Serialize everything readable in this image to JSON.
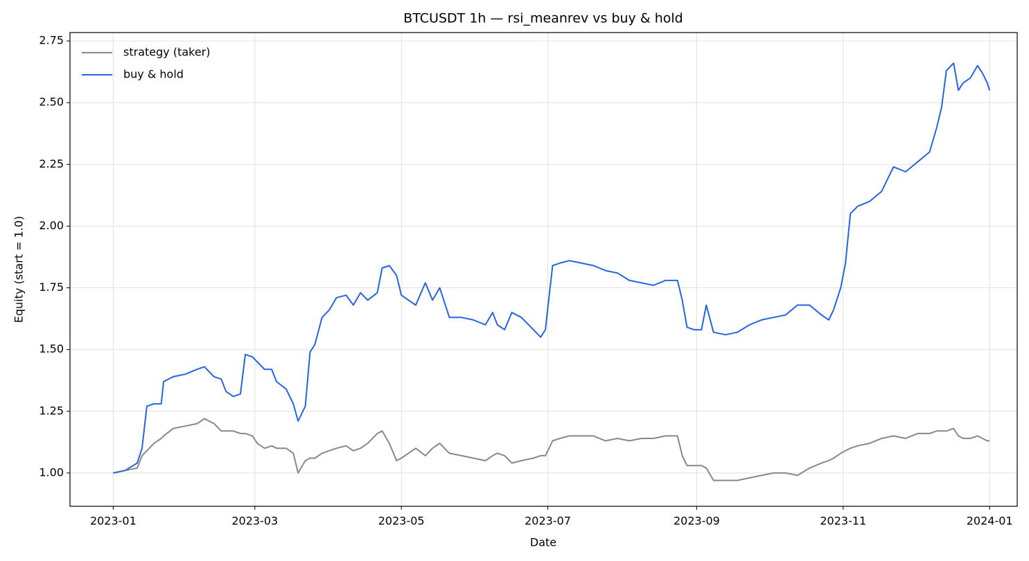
{
  "chart_data": {
    "type": "line",
    "title": "BTCUSDT 1h — rsi_meanrev vs buy & hold",
    "x_label": "Date",
    "y_label": "Equity (start = 1.0)",
    "x": [
      0,
      5,
      10,
      12,
      14,
      17,
      20,
      21,
      25,
      30,
      35,
      38,
      42,
      45,
      47,
      50,
      53,
      55,
      58,
      60,
      63,
      66,
      68,
      72,
      75,
      77,
      80,
      82,
      84,
      87,
      90,
      93,
      97,
      100,
      103,
      106,
      110,
      112,
      115,
      118,
      120,
      123,
      126,
      130,
      133,
      136,
      140,
      145,
      150,
      155,
      158,
      160,
      163,
      166,
      170,
      175,
      178,
      180,
      181,
      183,
      186,
      190,
      195,
      200,
      205,
      210,
      215,
      220,
      225,
      230,
      235,
      237,
      239,
      242,
      245,
      247,
      250,
      255,
      260,
      265,
      270,
      275,
      280,
      285,
      290,
      295,
      298,
      300,
      303,
      305,
      307,
      310,
      315,
      320,
      325,
      330,
      335,
      340,
      343,
      345,
      347,
      350,
      352,
      354,
      357,
      360,
      362,
      364,
      365
    ],
    "series": [
      {
        "name": "strategy (taker)",
        "color": "#888888",
        "values": [
          1.0,
          1.01,
          1.02,
          1.07,
          1.09,
          1.12,
          1.14,
          1.15,
          1.18,
          1.19,
          1.2,
          1.22,
          1.2,
          1.17,
          1.17,
          1.17,
          1.16,
          1.16,
          1.15,
          1.12,
          1.1,
          1.11,
          1.1,
          1.1,
          1.08,
          1.0,
          1.05,
          1.06,
          1.06,
          1.08,
          1.09,
          1.1,
          1.11,
          1.09,
          1.1,
          1.12,
          1.16,
          1.17,
          1.12,
          1.05,
          1.06,
          1.08,
          1.1,
          1.07,
          1.1,
          1.12,
          1.08,
          1.07,
          1.06,
          1.05,
          1.07,
          1.08,
          1.07,
          1.04,
          1.05,
          1.06,
          1.07,
          1.07,
          1.09,
          1.13,
          1.14,
          1.15,
          1.15,
          1.15,
          1.13,
          1.14,
          1.13,
          1.14,
          1.14,
          1.15,
          1.15,
          1.07,
          1.03,
          1.03,
          1.03,
          1.02,
          0.97,
          0.97,
          0.97,
          0.98,
          0.99,
          1.0,
          1.0,
          0.99,
          1.02,
          1.04,
          1.05,
          1.06,
          1.08,
          1.09,
          1.1,
          1.11,
          1.12,
          1.14,
          1.15,
          1.14,
          1.16,
          1.16,
          1.17,
          1.17,
          1.17,
          1.18,
          1.15,
          1.14,
          1.14,
          1.15,
          1.14,
          1.13,
          1.13
        ]
      },
      {
        "name": "buy & hold",
        "color": "#2563e0",
        "values": [
          1.0,
          1.01,
          1.04,
          1.1,
          1.27,
          1.28,
          1.28,
          1.37,
          1.39,
          1.4,
          1.42,
          1.43,
          1.39,
          1.38,
          1.33,
          1.31,
          1.32,
          1.48,
          1.47,
          1.45,
          1.42,
          1.42,
          1.37,
          1.34,
          1.28,
          1.21,
          1.27,
          1.49,
          1.52,
          1.63,
          1.66,
          1.71,
          1.72,
          1.68,
          1.73,
          1.7,
          1.73,
          1.83,
          1.84,
          1.8,
          1.72,
          1.7,
          1.68,
          1.77,
          1.7,
          1.75,
          1.63,
          1.63,
          1.62,
          1.6,
          1.65,
          1.6,
          1.58,
          1.65,
          1.63,
          1.58,
          1.55,
          1.58,
          1.67,
          1.84,
          1.85,
          1.86,
          1.85,
          1.84,
          1.82,
          1.81,
          1.78,
          1.77,
          1.76,
          1.78,
          1.78,
          1.7,
          1.59,
          1.58,
          1.58,
          1.68,
          1.57,
          1.56,
          1.57,
          1.6,
          1.62,
          1.63,
          1.64,
          1.68,
          1.68,
          1.64,
          1.62,
          1.66,
          1.75,
          1.85,
          2.05,
          2.08,
          2.1,
          2.14,
          2.24,
          2.22,
          2.26,
          2.3,
          2.4,
          2.48,
          2.63,
          2.66,
          2.55,
          2.58,
          2.6,
          2.65,
          2.62,
          2.58,
          2.55
        ]
      }
    ],
    "xlim": [
      -18,
      376.5
    ],
    "xticks": [
      {
        "value": 0,
        "label": "2023-01"
      },
      {
        "value": 59,
        "label": "2023-03"
      },
      {
        "value": 120,
        "label": "2023-05"
      },
      {
        "value": 181,
        "label": "2023-07"
      },
      {
        "value": 243,
        "label": "2023-09"
      },
      {
        "value": 304,
        "label": "2023-11"
      },
      {
        "value": 365,
        "label": "2024-01"
      }
    ],
    "ylim": [
      0.865,
      2.784
    ],
    "yticks": [
      {
        "value": 1.0,
        "label": "1.00"
      },
      {
        "value": 1.25,
        "label": "1.25"
      },
      {
        "value": 1.5,
        "label": "1.50"
      },
      {
        "value": 1.75,
        "label": "1.75"
      },
      {
        "value": 2.0,
        "label": "2.00"
      },
      {
        "value": 2.25,
        "label": "2.25"
      },
      {
        "value": 2.5,
        "label": "2.50"
      },
      {
        "value": 2.75,
        "label": "2.75"
      }
    ],
    "grid": true,
    "legend": "upper-left"
  }
}
